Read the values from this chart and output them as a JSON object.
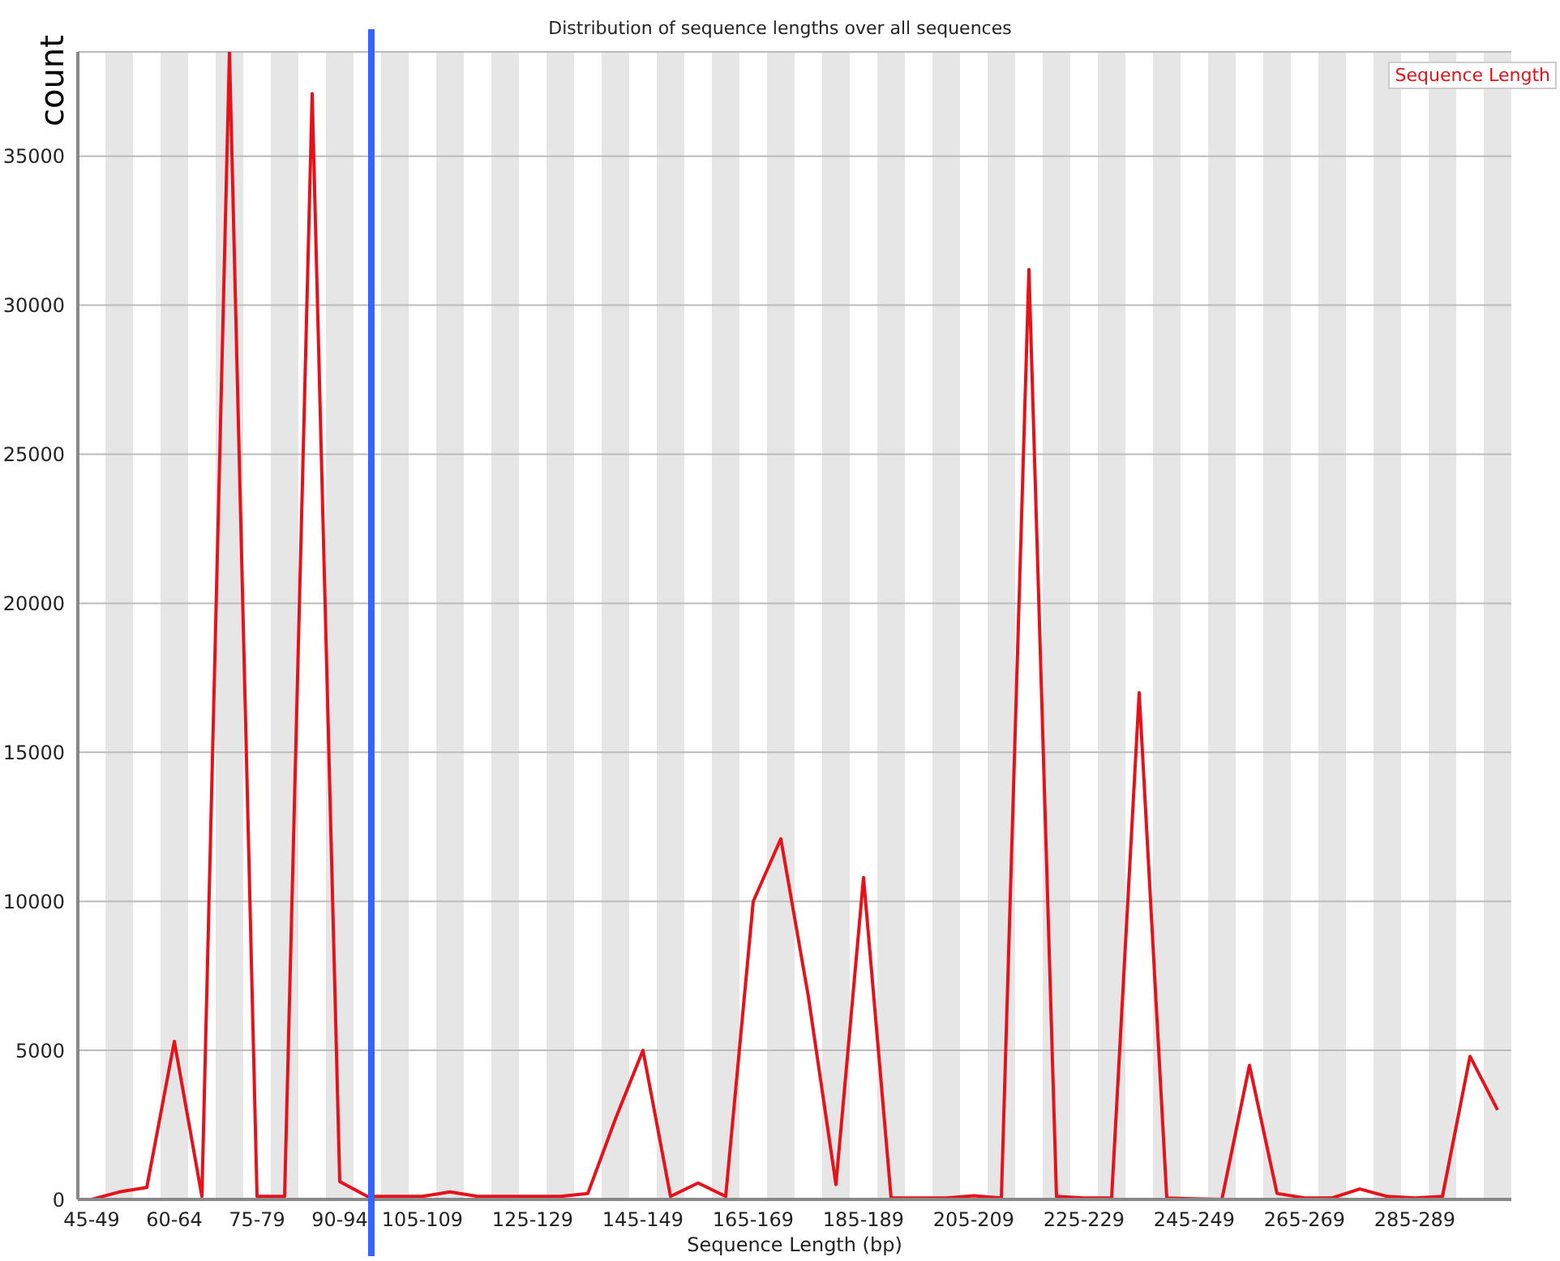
{
  "chart_data": {
    "type": "line",
    "title": "Distribution of sequence lengths over all sequences",
    "xlabel": "Sequence Length (bp)",
    "ylabel": "count",
    "categories": [
      "45-49",
      null,
      null,
      "60-64",
      null,
      null,
      "75-79",
      null,
      null,
      "90-94",
      null,
      null,
      "105-109",
      null,
      null,
      null,
      "125-129",
      null,
      null,
      null,
      "145-149",
      null,
      null,
      null,
      "165-169",
      null,
      null,
      null,
      "185-189",
      null,
      null,
      null,
      "205-209",
      null,
      null,
      null,
      "225-229",
      null,
      null,
      null,
      "245-249",
      null,
      null,
      null,
      "265-269",
      null,
      null,
      null,
      "285-289",
      null,
      null,
      null
    ],
    "series": [
      {
        "name": "Sequence Length",
        "color": "#e8111a",
        "values": [
          0,
          250,
          400,
          5300,
          100,
          38500,
          100,
          100,
          37100,
          600,
          100,
          100,
          100,
          250,
          100,
          100,
          100,
          100,
          200,
          2700,
          5000,
          100,
          550,
          100,
          10000,
          12100,
          6800,
          500,
          10800,
          50,
          50,
          50,
          120,
          50,
          31200,
          100,
          50,
          50,
          17000,
          50,
          20,
          0,
          4500,
          200,
          50,
          50,
          350,
          100,
          50,
          100,
          4800,
          3000
        ]
      }
    ],
    "ylim": [
      0,
      38500
    ],
    "yticks": [
      0,
      5000,
      10000,
      15000,
      20000,
      25000,
      30000,
      35000
    ],
    "grid": "y",
    "legend": "top right",
    "marker": "none",
    "line_style": "solid"
  }
}
